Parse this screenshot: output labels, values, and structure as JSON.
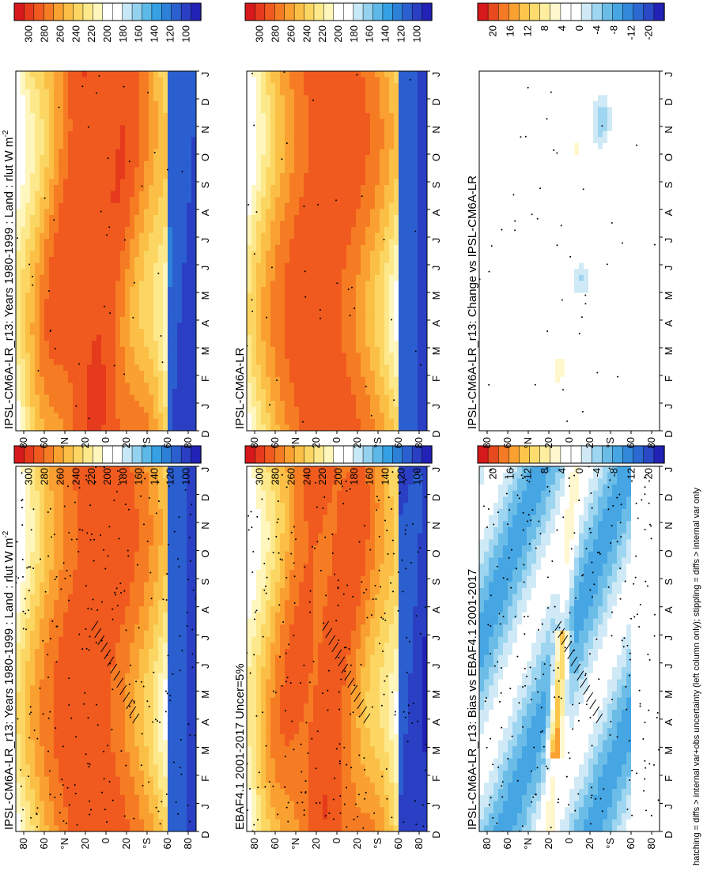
{
  "footnote": "hatching = diffs > internal var+obs uncertainty (left column only); stippling = diffs > internal var only",
  "colors": {
    "abs": [
      "#d7191c",
      "#e53a1c",
      "#f05a1e",
      "#f57c22",
      "#f9a031",
      "#fbbf45",
      "#fcd663",
      "#fde98c",
      "#fef6bc",
      "#ffffff",
      "#ffffff",
      "#c7e8f6",
      "#94d2ef",
      "#5cb9e8",
      "#35a0e3",
      "#2d80d8",
      "#2b5fd0",
      "#2a3fc4",
      "#2222b6"
    ],
    "diff": [
      "#d7191c",
      "#e84a1f",
      "#f57a25",
      "#f9a031",
      "#fbc64a",
      "#fddc6e",
      "#feee9e",
      "#fff8cf",
      "#ffffff",
      "#ffffff",
      "#cfeaf6",
      "#9ed5f0",
      "#6bbde8",
      "#46a5e3",
      "#3288da",
      "#2c69d1",
      "#2a49c6",
      "#2222b6"
    ]
  },
  "chart_data": [
    {
      "type": "heatmap",
      "title": "IPSL-CM6A-LR_r13: Years 1980-1999 : Land : rlut W m",
      "title_sup": "-2",
      "month_labels": [
        "D",
        "J",
        "F",
        "M",
        "A",
        "M",
        "J",
        "J",
        "A",
        "S",
        "O",
        "N",
        "D",
        "J"
      ],
      "lat_labels": [
        "80",
        "60",
        "°N",
        "20",
        "0",
        "20",
        "°S",
        "60",
        "80"
      ],
      "colorbar": {
        "kind": "abs",
        "labels": [
          "300",
          "280",
          "260",
          "240",
          "220",
          "200",
          "180",
          "160",
          "140",
          "120",
          "100"
        ],
        "range": [
          90,
          310
        ]
      },
      "hatching": true,
      "stippling": true
    },
    {
      "type": "heatmap",
      "title": "IPSL-CM6A-LR_r13: Years 1980-1999 : Land : rlut W m",
      "title_sup": "-2",
      "month_labels": [
        "D",
        "J",
        "F",
        "M",
        "A",
        "M",
        "J",
        "J",
        "A",
        "S",
        "O",
        "N",
        "D",
        "J"
      ],
      "lat_labels": [
        "80",
        "60",
        "°N",
        "20",
        "0",
        "20",
        "°S",
        "60",
        "80"
      ],
      "colorbar": {
        "kind": "abs",
        "labels": [
          "300",
          "280",
          "260",
          "240",
          "220",
          "200",
          "180",
          "160",
          "140",
          "120",
          "100"
        ],
        "range": [
          90,
          310
        ]
      },
      "hatching": false,
      "stippling": true
    },
    {
      "type": "heatmap",
      "title": "EBAF4.1 2001-2017 Uncer=5%",
      "title_sup": "",
      "month_labels": [
        "D",
        "J",
        "F",
        "M",
        "A",
        "M",
        "J",
        "J",
        "A",
        "S",
        "O",
        "N",
        "D",
        "J"
      ],
      "lat_labels": [
        "80",
        "60",
        "°N",
        "20",
        "0",
        "20",
        "°S",
        "60",
        "80"
      ],
      "colorbar": {
        "kind": "abs",
        "labels": [
          "300",
          "280",
          "260",
          "240",
          "220",
          "200",
          "180",
          "160",
          "140",
          "120",
          "100"
        ],
        "range": [
          90,
          310
        ]
      },
      "hatching": true,
      "stippling": true
    },
    {
      "type": "heatmap",
      "title": "IPSL-CM6A-LR",
      "title_sup": "",
      "month_labels": [
        "D",
        "J",
        "F",
        "M",
        "A",
        "M",
        "J",
        "J",
        "A",
        "S",
        "O",
        "N",
        "D",
        "J"
      ],
      "lat_labels": [
        "80",
        "60",
        "°N",
        "20",
        "0",
        "20",
        "°S",
        "60",
        "80"
      ],
      "colorbar": {
        "kind": "abs",
        "labels": [
          "300",
          "280",
          "260",
          "240",
          "220",
          "200",
          "180",
          "160",
          "140",
          "120",
          "100"
        ],
        "range": [
          90,
          310
        ]
      },
      "hatching": false,
      "stippling": true
    },
    {
      "type": "heatmap",
      "title": "IPSL-CM6A-LR_r13: Bias vs EBAF4.1 2001-2017",
      "title_sup": "",
      "month_labels": [
        "D",
        "J",
        "F",
        "M",
        "A",
        "M",
        "J",
        "J",
        "A",
        "S",
        "O",
        "N",
        "D",
        "J"
      ],
      "lat_labels": [
        "80",
        "60",
        "°N",
        "20",
        "0",
        "20",
        "°S",
        "60",
        "80"
      ],
      "colorbar": {
        "kind": "diff",
        "labels": [
          "20",
          "16",
          "12",
          "8",
          "4",
          "0",
          "-4",
          "-8",
          "-12",
          "-20"
        ],
        "range": [
          -22,
          22
        ]
      },
      "hatching": true,
      "stippling": true
    },
    {
      "type": "heatmap",
      "title": "IPSL-CM6A-LR_r13: Change vs IPSL-CM6A-LR",
      "title_sup": "",
      "month_labels": [
        "D",
        "J",
        "F",
        "M",
        "A",
        "M",
        "J",
        "J",
        "A",
        "S",
        "O",
        "N",
        "D",
        "J"
      ],
      "lat_labels": [
        "80",
        "60",
        "°N",
        "20",
        "0",
        "20",
        "°S",
        "60",
        "80"
      ],
      "colorbar": {
        "kind": "diff",
        "labels": [
          "20",
          "16",
          "12",
          "8",
          "4",
          "0",
          "-4",
          "-8",
          "-12",
          "-20"
        ],
        "range": [
          -22,
          22
        ]
      },
      "hatching": false,
      "stippling": true
    }
  ]
}
